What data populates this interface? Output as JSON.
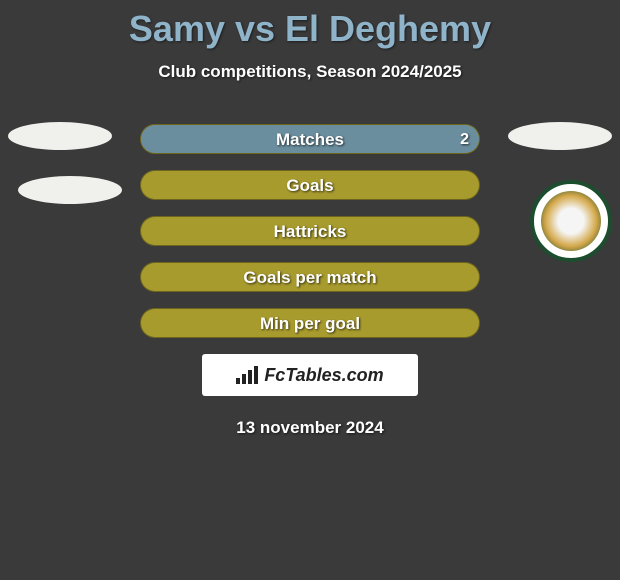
{
  "title": "Samy vs El Deghemy",
  "subtitle": "Club competitions, Season 2024/2025",
  "colors": {
    "background": "#3a3a3a",
    "title": "#8fb4c9",
    "bar_base": "#a89b2e",
    "bar_fill": "#6b8e9e",
    "text": "#ffffff"
  },
  "bars": [
    {
      "label": "Matches",
      "value": "2",
      "fill_pct": 100
    },
    {
      "label": "Goals",
      "value": "",
      "fill_pct": 0
    },
    {
      "label": "Hattricks",
      "value": "",
      "fill_pct": 0
    },
    {
      "label": "Goals per match",
      "value": "",
      "fill_pct": 0
    },
    {
      "label": "Min per goal",
      "value": "",
      "fill_pct": 0
    }
  ],
  "watermark": "FcTables.com",
  "date": "13 november 2024"
}
